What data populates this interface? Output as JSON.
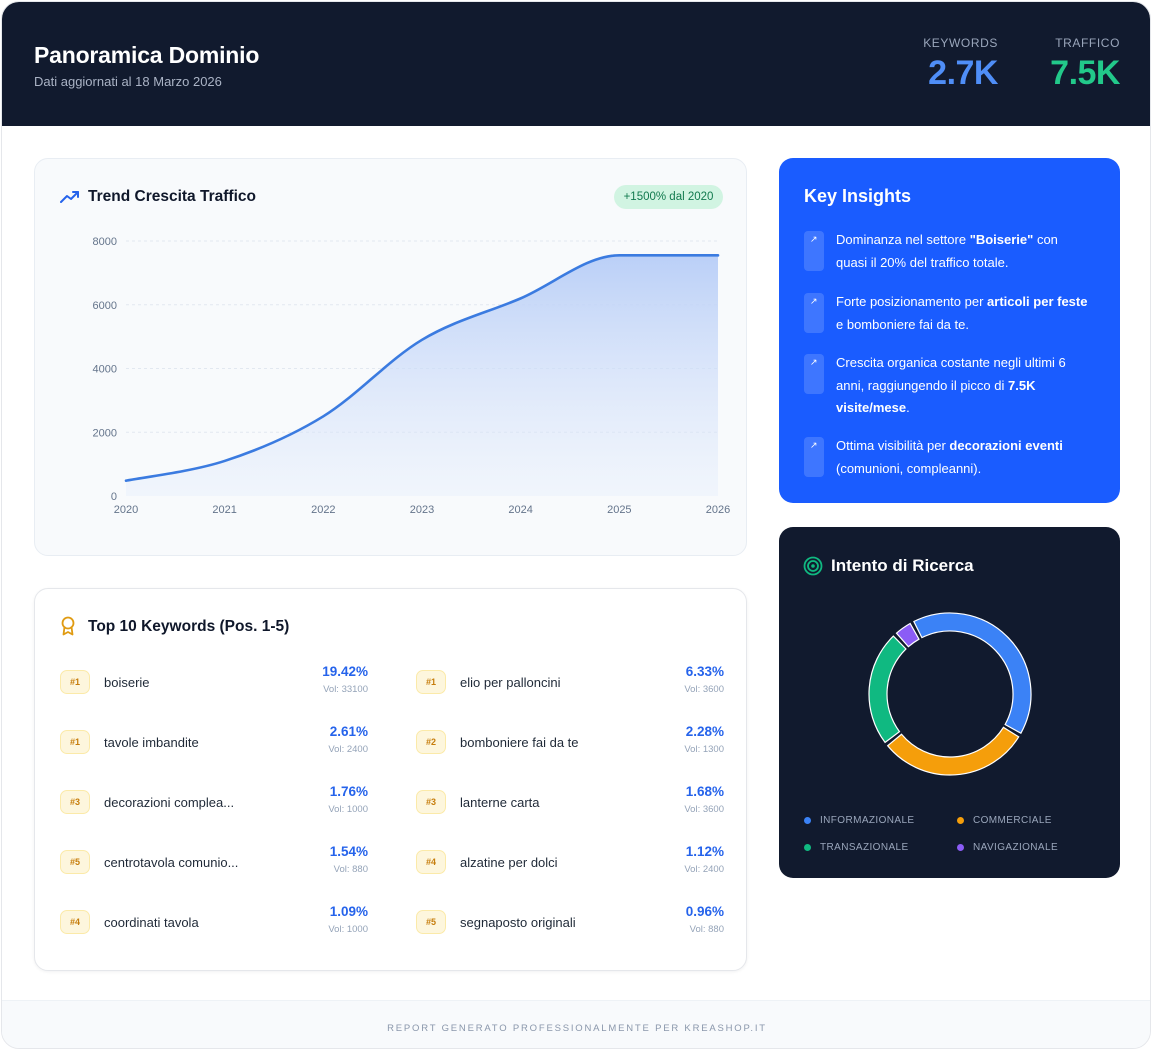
{
  "header": {
    "title": "Panoramica Dominio",
    "subtitle": "Dati aggiornati al 18 Marzo 2026",
    "stats": [
      {
        "label": "KEYWORDS",
        "value": "2.7K",
        "color": "#4f8ef7"
      },
      {
        "label": "TRAFFICO",
        "value": "7.5K",
        "color": "#22c98a"
      }
    ]
  },
  "trend": {
    "title": "Trend Crescita Traffico",
    "badge": "+1500% dal 2020",
    "icon": "trending-up-icon"
  },
  "chart_data": {
    "type": "area",
    "title": "Trend Crescita Traffico",
    "x": [
      "2020",
      "2021",
      "2022",
      "2023",
      "2024",
      "2025",
      "2026"
    ],
    "series": [
      {
        "values": [
          480,
          1100,
          2500,
          4900,
          6200,
          7550,
          7550
        ]
      }
    ],
    "xlabel": "",
    "ylabel": "",
    "ylim": [
      0,
      8000
    ],
    "yticks": [
      "0",
      "2000",
      "4000",
      "6000",
      "8000"
    ],
    "grid": true,
    "color": "#3b7be0"
  },
  "keywords": {
    "title": "Top 10 Keywords (Pos. 1-5)",
    "icon": "award-icon",
    "items": [
      {
        "rank": "#1",
        "name": "boiserie",
        "pct": "19.42%",
        "vol": "Vol: 33100"
      },
      {
        "rank": "#1",
        "name": "elio per palloncini",
        "pct": "6.33%",
        "vol": "Vol: 3600"
      },
      {
        "rank": "#1",
        "name": "tavole imbandite",
        "pct": "2.61%",
        "vol": "Vol: 2400"
      },
      {
        "rank": "#2",
        "name": "bomboniere fai da te",
        "pct": "2.28%",
        "vol": "Vol: 1300"
      },
      {
        "rank": "#3",
        "name": "decorazioni complea...",
        "pct": "1.76%",
        "vol": "Vol: 1000"
      },
      {
        "rank": "#3",
        "name": "lanterne carta",
        "pct": "1.68%",
        "vol": "Vol: 3600"
      },
      {
        "rank": "#5",
        "name": "centrotavola comunio...",
        "pct": "1.54%",
        "vol": "Vol: 880"
      },
      {
        "rank": "#4",
        "name": "alzatine per dolci",
        "pct": "1.12%",
        "vol": "Vol: 2400"
      },
      {
        "rank": "#4",
        "name": "coordinati tavola",
        "pct": "1.09%",
        "vol": "Vol: 1000"
      },
      {
        "rank": "#5",
        "name": "segnaposto originali",
        "pct": "0.96%",
        "vol": "Vol: 880"
      }
    ]
  },
  "insights": {
    "title": "Key Insights",
    "marker": "↗",
    "items": [
      {
        "pre": "Dominanza nel settore ",
        "bold": "\"Boiserie\"",
        "post": " con quasi il 20% del traffico totale."
      },
      {
        "pre": "Forte posizionamento per ",
        "bold": "articoli per feste",
        "post": " e bomboniere fai da te."
      },
      {
        "pre": "Crescita organica costante negli ultimi 6 anni, raggiungendo il picco di ",
        "bold": "7.5K visite/mese",
        "post": "."
      },
      {
        "pre": "Ottima visibilità per ",
        "bold": "decorazioni eventi",
        "post": " (comunioni, compleanni)."
      }
    ]
  },
  "intent": {
    "title": "Intento di Ricerca",
    "icon": "target-icon",
    "segments": [
      {
        "label": "INFORMAZIONALE",
        "value": 40,
        "color": "#3b82f6"
      },
      {
        "label": "COMMERCIALE",
        "value": 30,
        "color": "#f59e0b"
      },
      {
        "label": "TRANSAZIONALE",
        "value": 23,
        "color": "#10b981"
      },
      {
        "label": "NAVIGAZIONALE",
        "value": 4,
        "color": "#8b5cf6"
      }
    ]
  },
  "footer": {
    "text": "REPORT GENERATO PROFESSIONALMENTE PER KREASHOP.IT"
  }
}
